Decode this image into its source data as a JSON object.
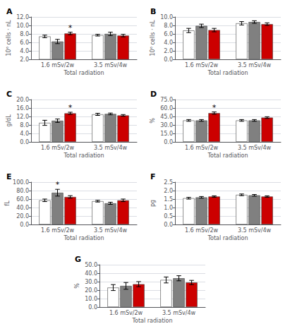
{
  "chart_data": [
    {
      "type": "bar",
      "title": "A",
      "xlabel": "Total radiation",
      "ylabel": "10⁶ cells · nL",
      "categories": [
        "1.6 mSv/2w",
        "3.5 mSv/4w"
      ],
      "series": [
        {
          "color": "#ffffff",
          "values": [
            7.4,
            7.7
          ],
          "errors": [
            0.3,
            0.2
          ]
        },
        {
          "color": "#808080",
          "values": [
            6.2,
            8.0
          ],
          "errors": [
            0.5,
            0.4
          ]
        },
        {
          "color": "#cc0000",
          "values": [
            8.1,
            7.6
          ],
          "errors": [
            0.3,
            0.3
          ],
          "annotations": [
            "*",
            null
          ]
        }
      ],
      "ylim": [
        2.0,
        12.0
      ],
      "yticks": [
        {
          "value": 2,
          "label": "2.0"
        },
        {
          "value": 4,
          "label": "4.0"
        },
        {
          "value": 6,
          "label": "6.0"
        },
        {
          "value": 8,
          "label": "8.0"
        },
        {
          "value": 10,
          "label": "10.0"
        },
        {
          "value": 12,
          "label": "12.0"
        }
      ],
      "grid": true
    },
    {
      "type": "bar",
      "title": "B",
      "xlabel": "Total radiation",
      "ylabel": "10⁶ cells · nL",
      "categories": [
        "1.6 mSv/2w",
        "3.5 mSv/4w"
      ],
      "series": [
        {
          "color": "#ffffff",
          "values": [
            6.8,
            8.5
          ],
          "errors": [
            0.5,
            0.4
          ]
        },
        {
          "color": "#808080",
          "values": [
            7.9,
            8.8
          ],
          "errors": [
            0.4,
            0.3
          ]
        },
        {
          "color": "#cc0000",
          "values": [
            6.9,
            8.3
          ],
          "errors": [
            0.4,
            0.3
          ]
        }
      ],
      "ylim": [
        0.0,
        10.0
      ],
      "yticks": [
        {
          "value": 0,
          "label": "0.0"
        },
        {
          "value": 2,
          "label": "2.0"
        },
        {
          "value": 4,
          "label": "4.0"
        },
        {
          "value": 6,
          "label": "6.0"
        },
        {
          "value": 8,
          "label": "8.0"
        },
        {
          "value": 10,
          "label": "10.0"
        }
      ],
      "grid": true
    },
    {
      "type": "bar",
      "title": "C",
      "xlabel": "Total radiation",
      "ylabel": "g/dL",
      "categories": [
        "1.6 mSv/2w",
        "3.5 mSv/4w"
      ],
      "series": [
        {
          "color": "#ffffff",
          "values": [
            9.0,
            13.0
          ],
          "errors": [
            1.2,
            0.5
          ]
        },
        {
          "color": "#808080",
          "values": [
            10.0,
            13.2
          ],
          "errors": [
            0.8,
            0.4
          ]
        },
        {
          "color": "#cc0000",
          "values": [
            13.5,
            12.5
          ],
          "errors": [
            0.5,
            0.4
          ],
          "annotations": [
            "*",
            null
          ]
        }
      ],
      "ylim": [
        0.0,
        20.0
      ],
      "yticks": [
        {
          "value": 0,
          "label": "0.0"
        },
        {
          "value": 4,
          "label": "4.0"
        },
        {
          "value": 8,
          "label": "8.0"
        },
        {
          "value": 12,
          "label": "12.0"
        },
        {
          "value": 16,
          "label": "16.0"
        },
        {
          "value": 20,
          "label": "20.0"
        }
      ],
      "grid": true
    },
    {
      "type": "bar",
      "title": "D",
      "xlabel": "Total radiation",
      "ylabel": "%",
      "categories": [
        "1.6 mSv/2w",
        "3.5 mSv/4w"
      ],
      "series": [
        {
          "color": "#ffffff",
          "values": [
            38.0,
            38.0
          ],
          "errors": [
            1.5,
            1.5
          ]
        },
        {
          "color": "#808080",
          "values": [
            38.0,
            38.0
          ],
          "errors": [
            1.5,
            1.5
          ]
        },
        {
          "color": "#cc0000",
          "values": [
            51.0,
            43.0
          ],
          "errors": [
            2.0,
            1.5
          ],
          "annotations": [
            "*",
            null
          ]
        }
      ],
      "ylim": [
        0.0,
        75.0
      ],
      "yticks": [
        {
          "value": 0,
          "label": "0.0"
        },
        {
          "value": 15,
          "label": "15.0"
        },
        {
          "value": 30,
          "label": "30.0"
        },
        {
          "value": 45,
          "label": "45.0"
        },
        {
          "value": 60,
          "label": "60.0"
        },
        {
          "value": 75,
          "label": "75.0"
        }
      ],
      "grid": true
    },
    {
      "type": "bar",
      "title": "E",
      "xlabel": "Total radiation",
      "ylabel": "fL",
      "categories": [
        "1.6 mSv/2w",
        "3.5 mSv/4w"
      ],
      "series": [
        {
          "color": "#ffffff",
          "values": [
            57.0,
            55.0
          ],
          "errors": [
            3.0,
            2.0
          ]
        },
        {
          "color": "#808080",
          "values": [
            75.0,
            50.0
          ],
          "errors": [
            8.0,
            2.5
          ],
          "annotations": [
            "*",
            null
          ]
        },
        {
          "color": "#cc0000",
          "values": [
            65.0,
            57.0
          ],
          "errors": [
            3.0,
            3.0
          ]
        }
      ],
      "ylim": [
        0.0,
        100.0
      ],
      "yticks": [
        {
          "value": 0,
          "label": "0.0"
        },
        {
          "value": 20,
          "label": "20.0"
        },
        {
          "value": 40,
          "label": "40.0"
        },
        {
          "value": 60,
          "label": "60.0"
        },
        {
          "value": 80,
          "label": "80.0"
        },
        {
          "value": 100,
          "label": "100.0"
        }
      ],
      "grid": true
    },
    {
      "type": "bar",
      "title": "F",
      "xlabel": "Total radiation",
      "ylabel": "pg",
      "categories": [
        "1.6 mSv/2w",
        "3.5 mSv/4w"
      ],
      "series": [
        {
          "color": "#ffffff",
          "values": [
            1.55,
            1.75
          ],
          "errors": [
            0.05,
            0.05
          ]
        },
        {
          "color": "#808080",
          "values": [
            1.6,
            1.72
          ],
          "errors": [
            0.05,
            0.05
          ]
        },
        {
          "color": "#cc0000",
          "values": [
            1.65,
            1.65
          ],
          "errors": [
            0.04,
            0.04
          ]
        }
      ],
      "ylim": [
        0.0,
        2.5
      ],
      "yticks": [
        {
          "value": 0,
          "label": "0.0"
        },
        0.5,
        {
          "value": 1,
          "label": "1.0"
        },
        1.5,
        {
          "value": 2,
          "label": "2.0"
        },
        2.5
      ],
      "grid": true
    },
    {
      "type": "bar",
      "title": "G",
      "xlabel": "Total radiation",
      "ylabel": "%",
      "categories": [
        "1.6 mSv/2w",
        "3.5 mSv/4w"
      ],
      "series": [
        {
          "color": "#ffffff",
          "values": [
            23.0,
            32.0
          ],
          "errors": [
            3.5,
            3.5
          ]
        },
        {
          "color": "#808080",
          "values": [
            25.0,
            34.0
          ],
          "errors": [
            4.0,
            3.0
          ]
        },
        {
          "color": "#cc0000",
          "values": [
            27.0,
            29.0
          ],
          "errors": [
            3.0,
            2.5
          ]
        }
      ],
      "ylim": [
        0.0,
        50.0
      ],
      "yticks": [
        {
          "value": 0,
          "label": "0.0"
        },
        {
          "value": 10,
          "label": "10.0"
        },
        {
          "value": 20,
          "label": "20.0"
        },
        {
          "value": 30,
          "label": "30.0"
        },
        {
          "value": 40,
          "label": "40.0"
        },
        {
          "value": 50,
          "label": "50.0"
        }
      ],
      "grid": true
    }
  ]
}
